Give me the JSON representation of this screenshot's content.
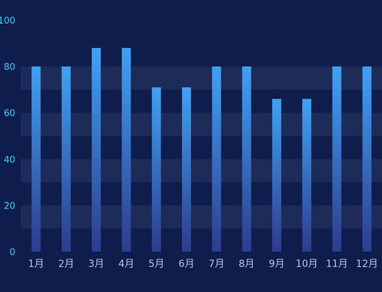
{
  "chart_data": {
    "type": "bar",
    "title": "",
    "xlabel": "",
    "ylabel": "",
    "categories": [
      "1月",
      "2月",
      "3月",
      "4月",
      "5月",
      "6月",
      "7月",
      "8月",
      "9月",
      "10月",
      "11月",
      "12月"
    ],
    "values": [
      80,
      80,
      88,
      88,
      71,
      71,
      80,
      80,
      66,
      66,
      80,
      80
    ],
    "ylim": [
      0,
      100
    ],
    "yticks": [
      0,
      20,
      40,
      60,
      80,
      100
    ],
    "grid": "horizontal alternating bands",
    "legend": "none"
  },
  "colors": {
    "background": "#0f1d4d",
    "band": "#1c2b57",
    "bar_top": "#3ea2f5",
    "bar_bottom": "#2d3c8e",
    "ytick": "#29d3f2",
    "xtick": "#b9c4dc"
  }
}
